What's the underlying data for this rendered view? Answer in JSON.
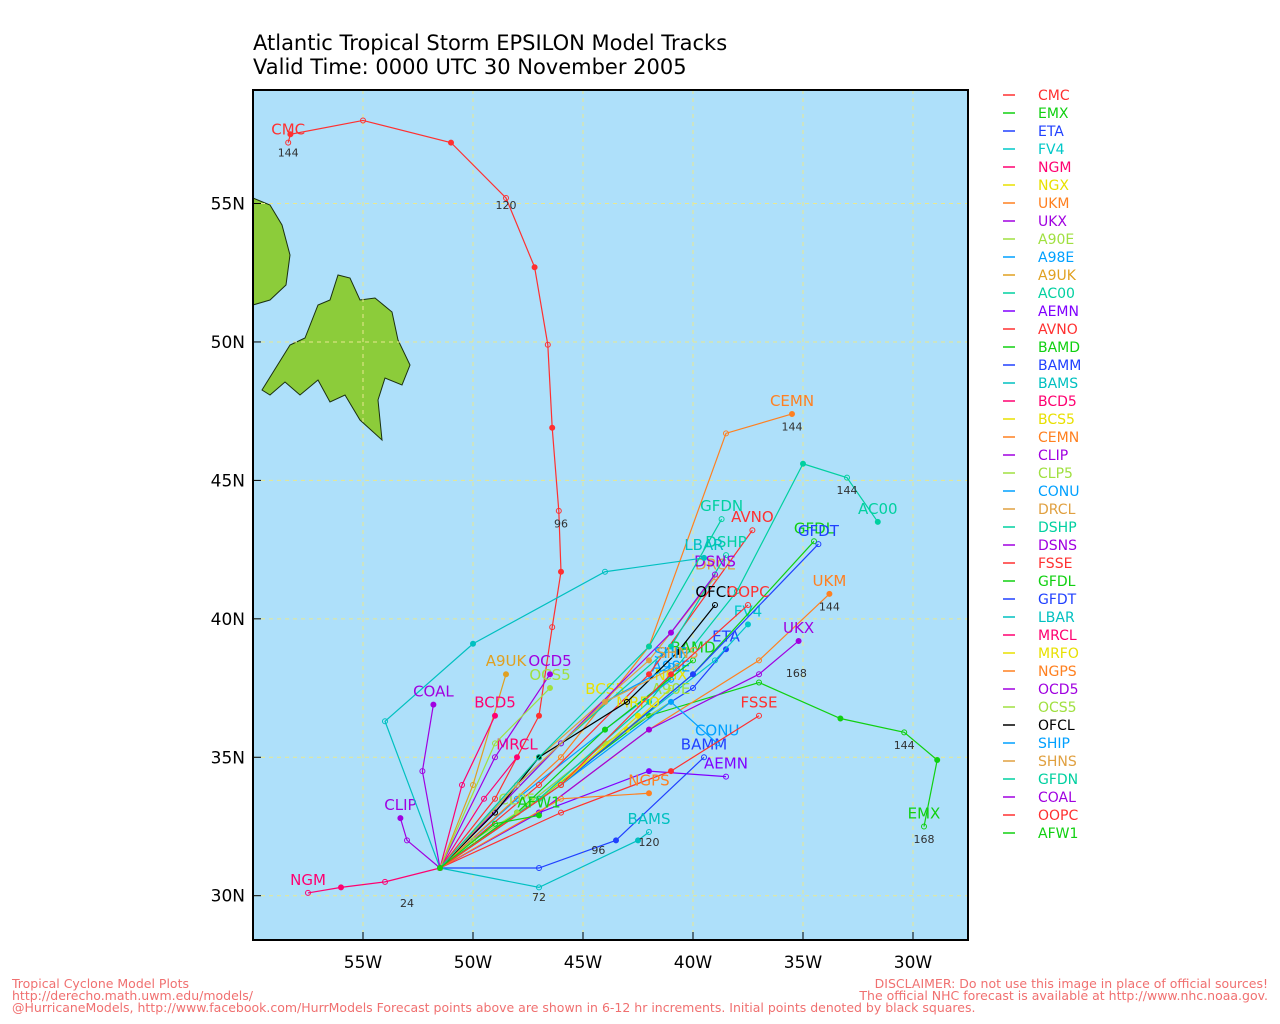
{
  "chart_data": {
    "type": "line",
    "title": "Atlantic Tropical Storm EPSILON Model Tracks",
    "subtitle": "Valid Time: 0000 UTC 30 November 2005",
    "xlim": [
      -60,
      -27.5
    ],
    "ylim": [
      28.4,
      59.1
    ],
    "xticks": [
      {
        "value": -55,
        "label": "55W"
      },
      {
        "value": -50,
        "label": "50W"
      },
      {
        "value": -45,
        "label": "45W"
      },
      {
        "value": -40,
        "label": "40W"
      },
      {
        "value": -35,
        "label": "35W"
      },
      {
        "value": -30,
        "label": "30W"
      }
    ],
    "yticks": [
      {
        "value": 30,
        "label": "30N"
      },
      {
        "value": 35,
        "label": "35N"
      },
      {
        "value": 40,
        "label": "40N"
      },
      {
        "value": 45,
        "label": "45N"
      },
      {
        "value": 50,
        "label": "50N"
      },
      {
        "value": 55,
        "label": "55N"
      }
    ],
    "grid": true,
    "series": [
      {
        "name": "CMC",
        "color": "#ff3030",
        "x": [
          -51.5,
          -49,
          -47,
          -46.4,
          -46,
          -46.1,
          -46.4,
          -46.6,
          -47.2,
          -48.5,
          -51,
          -55,
          -58.3,
          -58.4
        ],
        "values": [
          31,
          33.5,
          36.5,
          39.7,
          41.7,
          43.9,
          46.9,
          49.9,
          52.7,
          55.2,
          57.2,
          58.0,
          57.5,
          57.2
        ]
      },
      {
        "name": "EMX",
        "color": "#10d010",
        "x": [
          -51.5,
          -47,
          -42,
          -37,
          -33.3,
          -30.4,
          -28.9,
          -29.5
        ],
        "values": [
          31,
          33.5,
          36.5,
          37.7,
          36.4,
          35.9,
          34.9,
          32.5
        ]
      },
      {
        "name": "ETA",
        "color": "#2040ff",
        "x": [
          -51.5,
          -48,
          -44,
          -40,
          -38.5
        ],
        "values": [
          31,
          33,
          35.5,
          37.5,
          38.9
        ]
      },
      {
        "name": "FV4",
        "color": "#00c8c8",
        "x": [
          -51.5,
          -47,
          -43,
          -39,
          -37.5
        ],
        "values": [
          31,
          33.5,
          36,
          38.5,
          39.8
        ]
      },
      {
        "name": "NGM",
        "color": "#ff0070",
        "x": [
          -51.5,
          -54,
          -56,
          -57.5
        ],
        "values": [
          31,
          30.5,
          30.3,
          30.1
        ]
      },
      {
        "name": "NGX",
        "color": "#e8e000",
        "x": [
          -51.5,
          -47,
          -43,
          -41
        ],
        "values": [
          31,
          33.5,
          36,
          37.5
        ]
      },
      {
        "name": "UKM",
        "color": "#ff8020",
        "x": [
          -51.5,
          -47,
          -42,
          -37,
          -33.8
        ],
        "values": [
          31,
          33,
          36,
          38.5,
          40.9
        ]
      },
      {
        "name": "UKX",
        "color": "#a000e0",
        "x": [
          -51.5,
          -47,
          -42,
          -37,
          -35.2
        ],
        "values": [
          31,
          33,
          36,
          38,
          39.2
        ]
      },
      {
        "name": "A90E",
        "color": "#a0e040",
        "x": [
          -51.5,
          -48,
          -44,
          -41
        ],
        "values": [
          31,
          33,
          35.5,
          37
        ]
      },
      {
        "name": "A98E",
        "color": "#00a0ff",
        "x": [
          -51.5,
          -48,
          -44,
          -41
        ],
        "values": [
          31,
          33.5,
          36,
          37.8
        ]
      },
      {
        "name": "A9UK",
        "color": "#e0a020",
        "x": [
          -51.5,
          -50,
          -48.5
        ],
        "values": [
          31,
          34,
          38
        ]
      },
      {
        "name": "AC00",
        "color": "#00d0a0",
        "x": [
          -51.5,
          -47,
          -42,
          -38,
          -35,
          -33,
          -31.6
        ],
        "values": [
          31,
          33.5,
          37,
          41,
          45.6,
          45.1,
          43.5
        ]
      },
      {
        "name": "AEMN",
        "color": "#8000ff",
        "x": [
          -51.5,
          -47,
          -42,
          -38.5
        ],
        "values": [
          31,
          33,
          34.5,
          34.3
        ]
      },
      {
        "name": "AVNO",
        "color": "#ff3030",
        "x": [
          -51.5,
          -47,
          -42,
          -37.3
        ],
        "values": [
          31,
          34,
          38,
          43.2
        ]
      },
      {
        "name": "BAMD",
        "color": "#10d010",
        "x": [
          -51.5,
          -48,
          -44,
          -40
        ],
        "values": [
          31,
          33,
          36,
          38.5
        ]
      },
      {
        "name": "BAMM",
        "color": "#2040ff",
        "x": [
          -51.5,
          -47,
          -43.5,
          -39.5
        ],
        "values": [
          31,
          31,
          32,
          35
        ]
      },
      {
        "name": "BAMS",
        "color": "#00c0c0",
        "x": [
          -51.5,
          -47,
          -42.5,
          -42
        ],
        "values": [
          31,
          30.3,
          32,
          32.3
        ]
      },
      {
        "name": "BCD5",
        "color": "#ff0070",
        "x": [
          -51.5,
          -50.5,
          -49
        ],
        "values": [
          31,
          34,
          36.5
        ]
      },
      {
        "name": "BCS5",
        "color": "#e8e000",
        "x": [
          -51.5,
          -48,
          -44
        ],
        "values": [
          31,
          34,
          37
        ]
      },
      {
        "name": "CEMN",
        "color": "#ff8020",
        "x": [
          -51.5,
          -46,
          -42,
          -38.5,
          -35.5
        ],
        "values": [
          31,
          35,
          39,
          46.7,
          47.4
        ]
      },
      {
        "name": "CLIP",
        "color": "#a000e0",
        "x": [
          -51.5,
          -53,
          -53.3
        ],
        "values": [
          31,
          32,
          32.8
        ]
      },
      {
        "name": "CLP5",
        "color": "#a0e040",
        "x": [
          -51.5,
          -50,
          -48
        ],
        "values": [
          31,
          32,
          33
        ]
      },
      {
        "name": "CONU",
        "color": "#00a0ff",
        "x": [
          -51.5,
          -46,
          -41,
          -38.9
        ],
        "values": [
          31,
          34,
          37,
          35.5
        ]
      },
      {
        "name": "DRCL",
        "color": "#e0a040",
        "x": [
          -51.5,
          -47,
          -42,
          -39
        ],
        "values": [
          31,
          35,
          38.5,
          41.5
        ]
      },
      {
        "name": "DSHP",
        "color": "#00d0a0",
        "x": [
          -51.5,
          -46,
          -41,
          -38.5
        ],
        "values": [
          31,
          35.5,
          39,
          42.3
        ]
      },
      {
        "name": "DSNS",
        "color": "#a000e0",
        "x": [
          -51.5,
          -46,
          -41,
          -39
        ],
        "values": [
          31,
          35.5,
          39.5,
          41.6
        ]
      },
      {
        "name": "FSSE",
        "color": "#ff3030",
        "x": [
          -51.5,
          -46,
          -41,
          -37
        ],
        "values": [
          31,
          33,
          34.5,
          36.5
        ]
      },
      {
        "name": "GFDL",
        "color": "#10d010",
        "x": [
          -51.5,
          -46,
          -40,
          -34.5
        ],
        "values": [
          31,
          34,
          38,
          42.8
        ]
      },
      {
        "name": "GFDT",
        "color": "#2040ff",
        "x": [
          -51.5,
          -46,
          -40,
          -34.3
        ],
        "values": [
          31,
          34,
          38,
          42.7
        ]
      },
      {
        "name": "LBAR",
        "color": "#00c0c0",
        "x": [
          -51.5,
          -54,
          -50,
          -44,
          -39.5
        ],
        "values": [
          31,
          36.3,
          39.1,
          41.7,
          42.2
        ]
      },
      {
        "name": "MRCL",
        "color": "#ff0070",
        "x": [
          -51.5,
          -49.5,
          -48
        ],
        "values": [
          31,
          33.5,
          35
        ]
      },
      {
        "name": "MRFO",
        "color": "#e8e000",
        "x": [
          -51.5,
          -46,
          -42.5
        ],
        "values": [
          31,
          34,
          36.5
        ]
      },
      {
        "name": "NGPS",
        "color": "#ff8020",
        "x": [
          -51.5,
          -46,
          -42
        ],
        "values": [
          31,
          33.5,
          33.7
        ]
      },
      {
        "name": "OCD5",
        "color": "#a000e0",
        "x": [
          -51.5,
          -49,
          -46.5
        ],
        "values": [
          31,
          35,
          38
        ]
      },
      {
        "name": "OCS5",
        "color": "#a0e040",
        "x": [
          -51.5,
          -49,
          -46.5
        ],
        "values": [
          31,
          35.5,
          37.5
        ]
      },
      {
        "name": "OFCL",
        "color": "#000000",
        "x": [
          -51.5,
          -49,
          -47,
          -43,
          -40.7,
          -39
        ],
        "values": [
          31,
          33,
          35,
          37,
          38.8,
          40.5
        ]
      },
      {
        "name": "SHIP",
        "color": "#00a0ff",
        "x": [
          -51.5,
          -48,
          -44,
          -41
        ],
        "values": [
          31,
          34,
          37,
          38.3
        ]
      },
      {
        "name": "SHNS",
        "color": "#e0a040",
        "x": [
          -51.5,
          -48,
          -44,
          -40.7
        ],
        "values": [
          31,
          34,
          37,
          38.3
        ]
      },
      {
        "name": "GFDN",
        "color": "#00d0a0",
        "x": [
          -51.5,
          -47,
          -42,
          -38.7
        ],
        "values": [
          31,
          35,
          39,
          43.6
        ]
      },
      {
        "name": "COAL",
        "color": "#a000e0",
        "x": [
          -51.5,
          -52.3,
          -51.8
        ],
        "values": [
          31,
          34.5,
          36.9
        ]
      },
      {
        "name": "OOPC",
        "color": "#ff3030",
        "x": [
          -51.5,
          -46,
          -41,
          -37.5
        ],
        "values": [
          31,
          34,
          38,
          40.5
        ]
      },
      {
        "name": "AFW1",
        "color": "#10d010",
        "x": [
          -51.5,
          -49,
          -47
        ],
        "values": [
          31,
          32.6,
          32.9
        ]
      }
    ],
    "annotations": [
      {
        "text": "144",
        "x": -58.4,
        "y": 56.7
      },
      {
        "text": "120",
        "x": -48.5,
        "y": 54.8
      },
      {
        "text": "96",
        "x": -46,
        "y": 43.3
      },
      {
        "text": "144",
        "x": -30.4,
        "y": 35.3
      },
      {
        "text": "168",
        "x": -29.5,
        "y": 31.9
      },
      {
        "text": "144",
        "x": -35.5,
        "y": 46.8
      },
      {
        "text": "144",
        "x": -33,
        "y": 44.5
      },
      {
        "text": "144",
        "x": -33.8,
        "y": 40.3
      },
      {
        "text": "168",
        "x": -35.3,
        "y": 37.9
      },
      {
        "text": "120",
        "x": -42,
        "y": 31.8
      },
      {
        "text": "96",
        "x": -44.3,
        "y": 31.5
      },
      {
        "text": "72",
        "x": -47,
        "y": 29.8
      },
      {
        "text": "24",
        "x": -53,
        "y": 29.6
      }
    ],
    "footer_left": [
      "Tropical Cyclone Model Plots",
      "http://derecho.math.uwm.edu/models/",
      "@HurricaneModels, http://www.facebook.com/HurrModels  Forecast points above are shown in 6-12 hr increments. Initial points denoted by black squares."
    ],
    "footer_right": [
      "DISCLAIMER: Do not use this image in place of official sources!",
      "The official NHC forecast is available at http://www.nhc.noaa.gov."
    ]
  }
}
